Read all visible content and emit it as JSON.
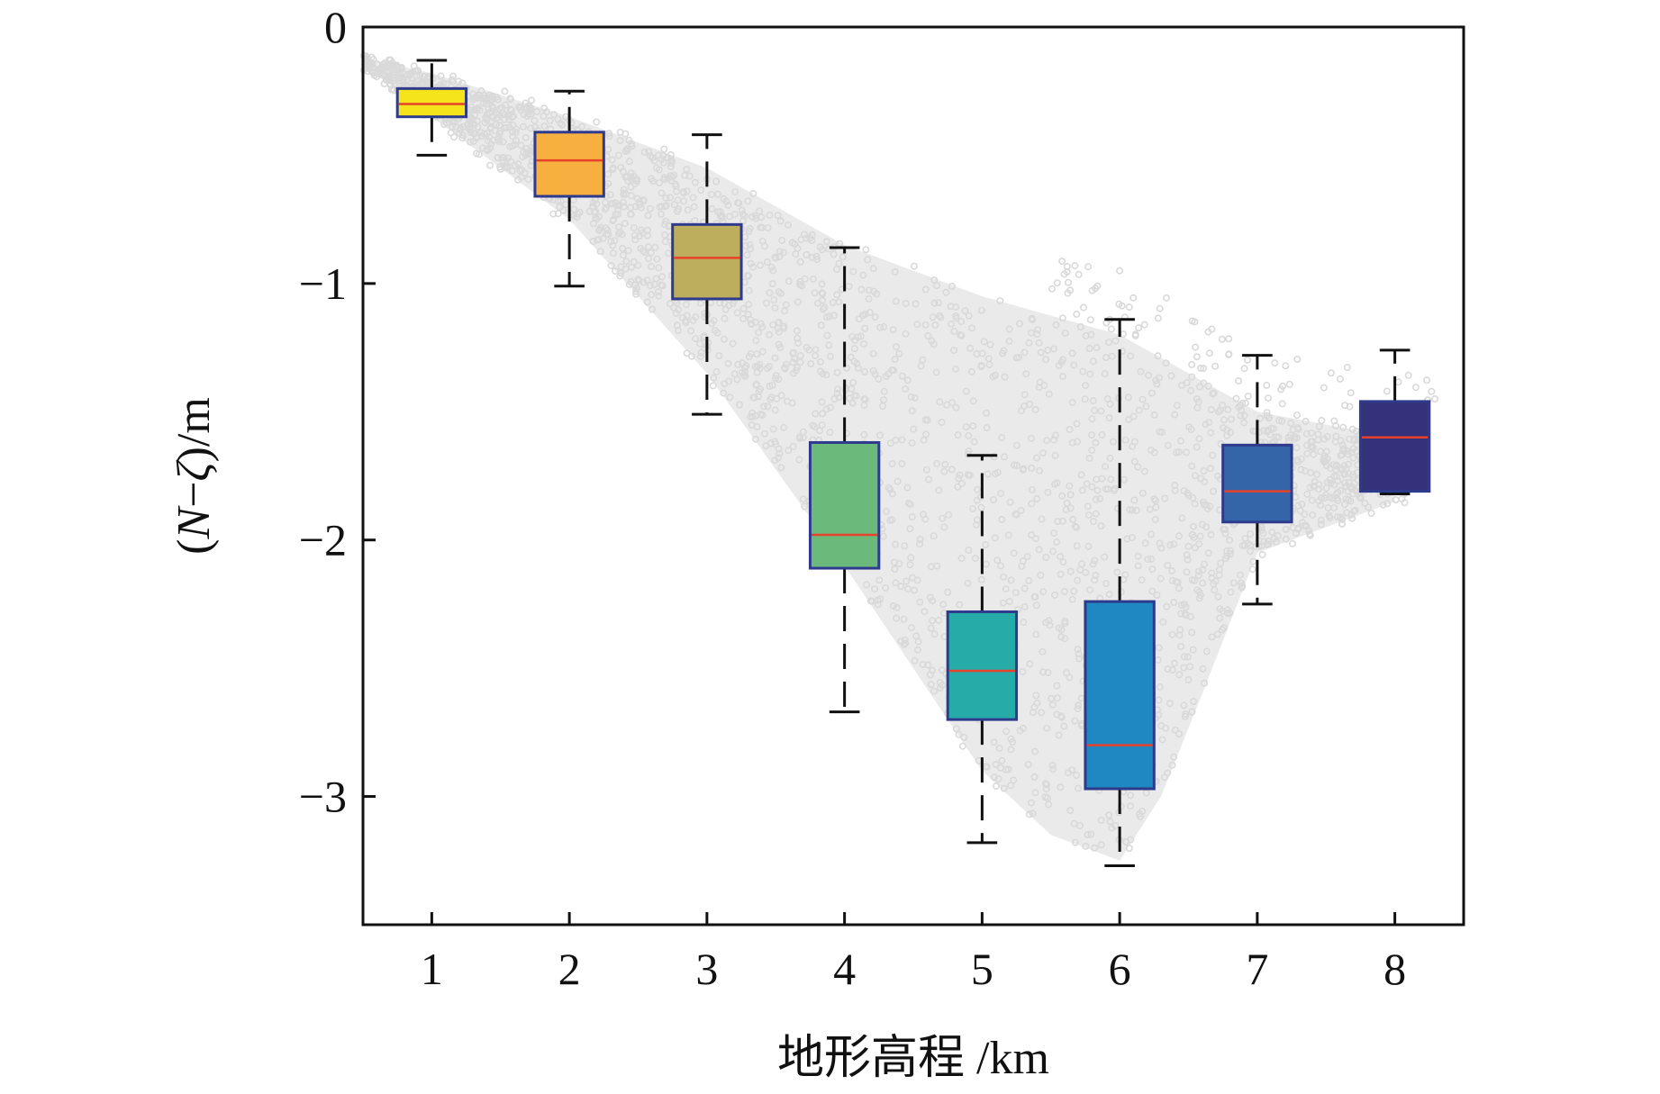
{
  "chart_data": {
    "type": "box",
    "title": "",
    "xlabel": "地形高程 /km",
    "ylabel_parts": [
      "(",
      "N",
      "−",
      "ζ",
      ")/m"
    ],
    "xlim": [
      0.5,
      8.5
    ],
    "ylim": [
      -3.5,
      0
    ],
    "xticks": [
      1,
      2,
      3,
      4,
      5,
      6,
      7,
      8
    ],
    "xtick_labels": [
      "1",
      "2",
      "3",
      "4",
      "5",
      "6",
      "7",
      "8"
    ],
    "yticks": [
      0,
      -1,
      -2,
      -3
    ],
    "ytick_labels": [
      "0",
      "−1",
      "−2",
      "−3"
    ],
    "grid": false,
    "scatter_band": {
      "description_color": "#d9d9d9",
      "upper_edge": [
        [
          0.5,
          -0.12
        ],
        [
          1,
          -0.18
        ],
        [
          2,
          -0.35
        ],
        [
          3,
          -0.55
        ],
        [
          4,
          -0.85
        ],
        [
          5,
          -1.05
        ],
        [
          6,
          -1.2
        ],
        [
          6.5,
          -1.35
        ],
        [
          7,
          -1.5
        ],
        [
          7.5,
          -1.55
        ],
        [
          8,
          -1.6
        ]
      ],
      "lower_edge": [
        [
          0.5,
          -0.14
        ],
        [
          1,
          -0.35
        ],
        [
          2,
          -0.75
        ],
        [
          3,
          -1.35
        ],
        [
          4,
          -2.1
        ],
        [
          5,
          -2.9
        ],
        [
          5.5,
          -3.15
        ],
        [
          6,
          -3.25
        ],
        [
          6.3,
          -3.0
        ],
        [
          6.6,
          -2.6
        ],
        [
          7,
          -2.05
        ],
        [
          7.5,
          -1.95
        ],
        [
          8,
          -1.85
        ]
      ]
    },
    "boxes": [
      {
        "category": "1",
        "whisker_low": -0.5,
        "q1": -0.35,
        "median": -0.3,
        "q3": -0.24,
        "whisker_high": -0.13,
        "color": "#f5e31c"
      },
      {
        "category": "2",
        "whisker_low": -1.01,
        "q1": -0.66,
        "median": -0.52,
        "q3": -0.41,
        "whisker_high": -0.25,
        "color": "#f7b040"
      },
      {
        "category": "3",
        "whisker_low": -1.51,
        "q1": -1.06,
        "median": -0.9,
        "q3": -0.77,
        "whisker_high": -0.42,
        "color": "#bcae5c"
      },
      {
        "category": "4",
        "whisker_low": -2.67,
        "q1": -2.11,
        "median": -1.98,
        "q3": -1.62,
        "whisker_high": -0.86,
        "color": "#6cb97c"
      },
      {
        "category": "5",
        "whisker_low": -3.18,
        "q1": -2.7,
        "median": -2.51,
        "q3": -2.28,
        "whisker_high": -1.67,
        "color": "#27aba8"
      },
      {
        "category": "6",
        "whisker_low": -3.27,
        "q1": -2.97,
        "median": -2.8,
        "q3": -2.24,
        "whisker_high": -1.14,
        "color": "#1f87c2"
      },
      {
        "category": "7",
        "whisker_low": -2.25,
        "q1": -1.93,
        "median": -1.81,
        "q3": -1.63,
        "whisker_high": -1.28,
        "color": "#3465a9"
      },
      {
        "category": "8",
        "whisker_low": -1.82,
        "q1": -1.81,
        "median": -1.6,
        "q3": -1.46,
        "whisker_high": -1.26,
        "color": "#34327a"
      }
    ],
    "box_edge_color": "#2e3a8c",
    "median_color": "#e8412a"
  }
}
